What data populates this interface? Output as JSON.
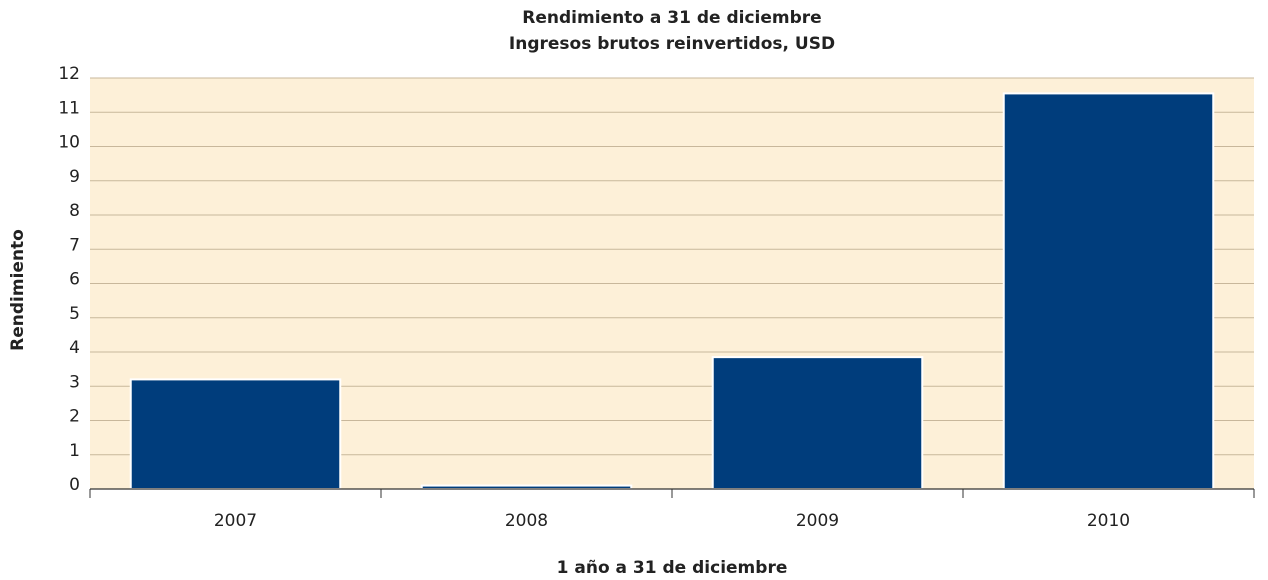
{
  "chart_data": {
    "type": "bar",
    "title": "Rendimiento a 31 de diciembre",
    "subtitle": "Ingresos brutos reinvertidos, USD",
    "x_label": "1 año a 31 de diciembre",
    "y_label": "Rendimiento",
    "categories": [
      "2007",
      "2008",
      "2009",
      "2010"
    ],
    "values": [
      3.2,
      0.1,
      3.85,
      11.55
    ],
    "color": "#003d7c",
    "ylim": [
      0,
      12
    ],
    "yticks": [
      0,
      1,
      2,
      3,
      4,
      5,
      6,
      7,
      8,
      9,
      10,
      11,
      12
    ],
    "grid": true
  }
}
